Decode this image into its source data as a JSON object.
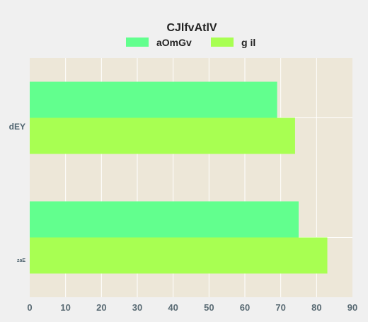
{
  "chart_data": {
    "type": "bar",
    "orientation": "horizontal",
    "title": "CJlfvAtlV",
    "categories": [
      "dEY",
      "zaE"
    ],
    "series": [
      {
        "name": "aOmGv",
        "values": [
          69,
          75
        ],
        "color": "#62ff8e"
      },
      {
        "name": "g il",
        "values": [
          74,
          83
        ],
        "color": "#a8ff52"
      }
    ],
    "xlim": [
      0,
      90
    ],
    "xticks": [
      0,
      10,
      20,
      30,
      40,
      50,
      60,
      70,
      80,
      90
    ],
    "grid": true,
    "legend_position": "top",
    "plot_background": "#ede7d8",
    "page_background": "#f0f0f0"
  }
}
